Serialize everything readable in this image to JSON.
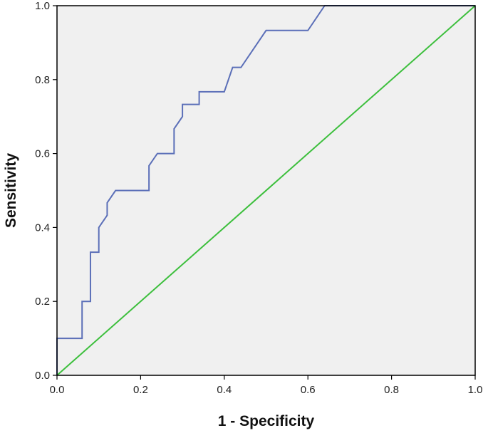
{
  "chart_data": {
    "type": "line",
    "xlabel": "1 - Specificity",
    "ylabel": "Sensitivity",
    "xlim": [
      0.0,
      1.0
    ],
    "ylim": [
      0.0,
      1.0
    ],
    "x_ticks": [
      "0.0",
      "0.2",
      "0.4",
      "0.6",
      "0.8",
      "1.0"
    ],
    "y_ticks": [
      "0.0",
      "0.2",
      "0.4",
      "0.6",
      "0.8",
      "1.0"
    ],
    "grid": false,
    "legend": "none",
    "background_color": "#f0f0f0",
    "series": [
      {
        "color": "#5b6fb8",
        "x": [
          0.0,
          0.0,
          0.06,
          0.06,
          0.08,
          0.08,
          0.1,
          0.1,
          0.12,
          0.12,
          0.14,
          0.22,
          0.22,
          0.24,
          0.28,
          0.28,
          0.3,
          0.3,
          0.34,
          0.34,
          0.4,
          0.42,
          0.44,
          0.5,
          0.6,
          0.64,
          1.0
        ],
        "y": [
          0.0,
          0.1,
          0.1,
          0.2,
          0.2,
          0.333,
          0.333,
          0.4,
          0.433,
          0.467,
          0.5,
          0.5,
          0.567,
          0.6,
          0.6,
          0.667,
          0.7,
          0.733,
          0.733,
          0.767,
          0.767,
          0.833,
          0.833,
          0.933,
          0.933,
          1.0,
          1.0
        ]
      },
      {
        "color": "#3cbf3c",
        "x": [
          0.0,
          1.0
        ],
        "y": [
          0.0,
          1.0
        ]
      }
    ]
  }
}
